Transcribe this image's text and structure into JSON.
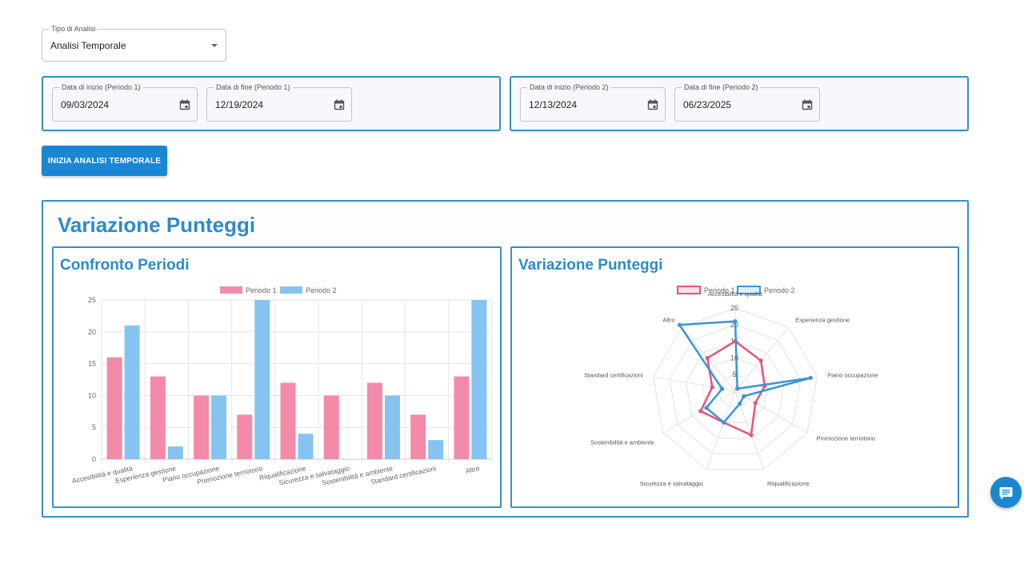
{
  "analysis_type": {
    "label": "Tipo di Analisi",
    "value": "Analisi Temporale"
  },
  "period1": {
    "start": {
      "label": "Data di inizio (Periodo 1)",
      "value": "09/03/2024"
    },
    "end": {
      "label": "Data di fine (Periodo 1)",
      "value": "12/19/2024"
    }
  },
  "period2": {
    "start": {
      "label": "Data di inizio (Periodo 2)",
      "value": "12/13/2024"
    },
    "end": {
      "label": "Data di fine (Periodo 2)",
      "value": "06/23/2025"
    }
  },
  "start_button": "INIZIA ANALISI TEMPORALE",
  "section_title": "Variazione Punteggi",
  "bar_card_title": "Confronto Periodi",
  "radar_card_title": "Variazione Punteggi",
  "colors": {
    "accent": "#2e8bc7",
    "button": "#1a87d3",
    "period1": "#f38ba8",
    "period2": "#85c4f0",
    "period1_line": "#e8537a",
    "period2_line": "#3a95d6"
  },
  "icons": {
    "calendar": "calendar-icon",
    "dropdown": "chevron-down-icon",
    "chat": "chat-icon"
  },
  "chart_data": [
    {
      "type": "bar",
      "categories": [
        "Accesibilità e qualità",
        "Esperienza gestione",
        "Piano occupazione",
        "Promozione terriotorio",
        "Riqualificazione",
        "Sicurezza e salvataggio",
        "Sostenibilità e ambiente",
        "Standard certificazioni",
        "Altro"
      ],
      "series": [
        {
          "name": "Periodo 1",
          "values": [
            16,
            13,
            10,
            7,
            12,
            10,
            12,
            7,
            13
          ]
        },
        {
          "name": "Periodo 2",
          "values": [
            21,
            2,
            10,
            25,
            4,
            0,
            10,
            3,
            25
          ]
        }
      ],
      "yticks": [
        0,
        5,
        10,
        15,
        20,
        25
      ],
      "ylim": [
        0,
        25
      ],
      "legend": "top",
      "grid": true
    },
    {
      "type": "radar",
      "categories": [
        "Accesibilità e qualità",
        "Esperienza gestione",
        "Piano occupazione",
        "Promozione terriotorio",
        "Riqualificazione",
        "Sicurezza e salvataggio",
        "Sostenibilità e ambiente",
        "Standard certificazioni",
        "Altro"
      ],
      "series": [
        {
          "name": "Periodo 1",
          "values": [
            15,
            12,
            9,
            7,
            14,
            10,
            12,
            7,
            13
          ]
        },
        {
          "name": "Periodo 2",
          "values": [
            21,
            1,
            23,
            3,
            4,
            10,
            10,
            4,
            26
          ]
        }
      ],
      "rticks": [
        5,
        10,
        15,
        20,
        25
      ],
      "rlim": [
        0,
        25
      ],
      "legend": "top",
      "grid": true
    }
  ]
}
